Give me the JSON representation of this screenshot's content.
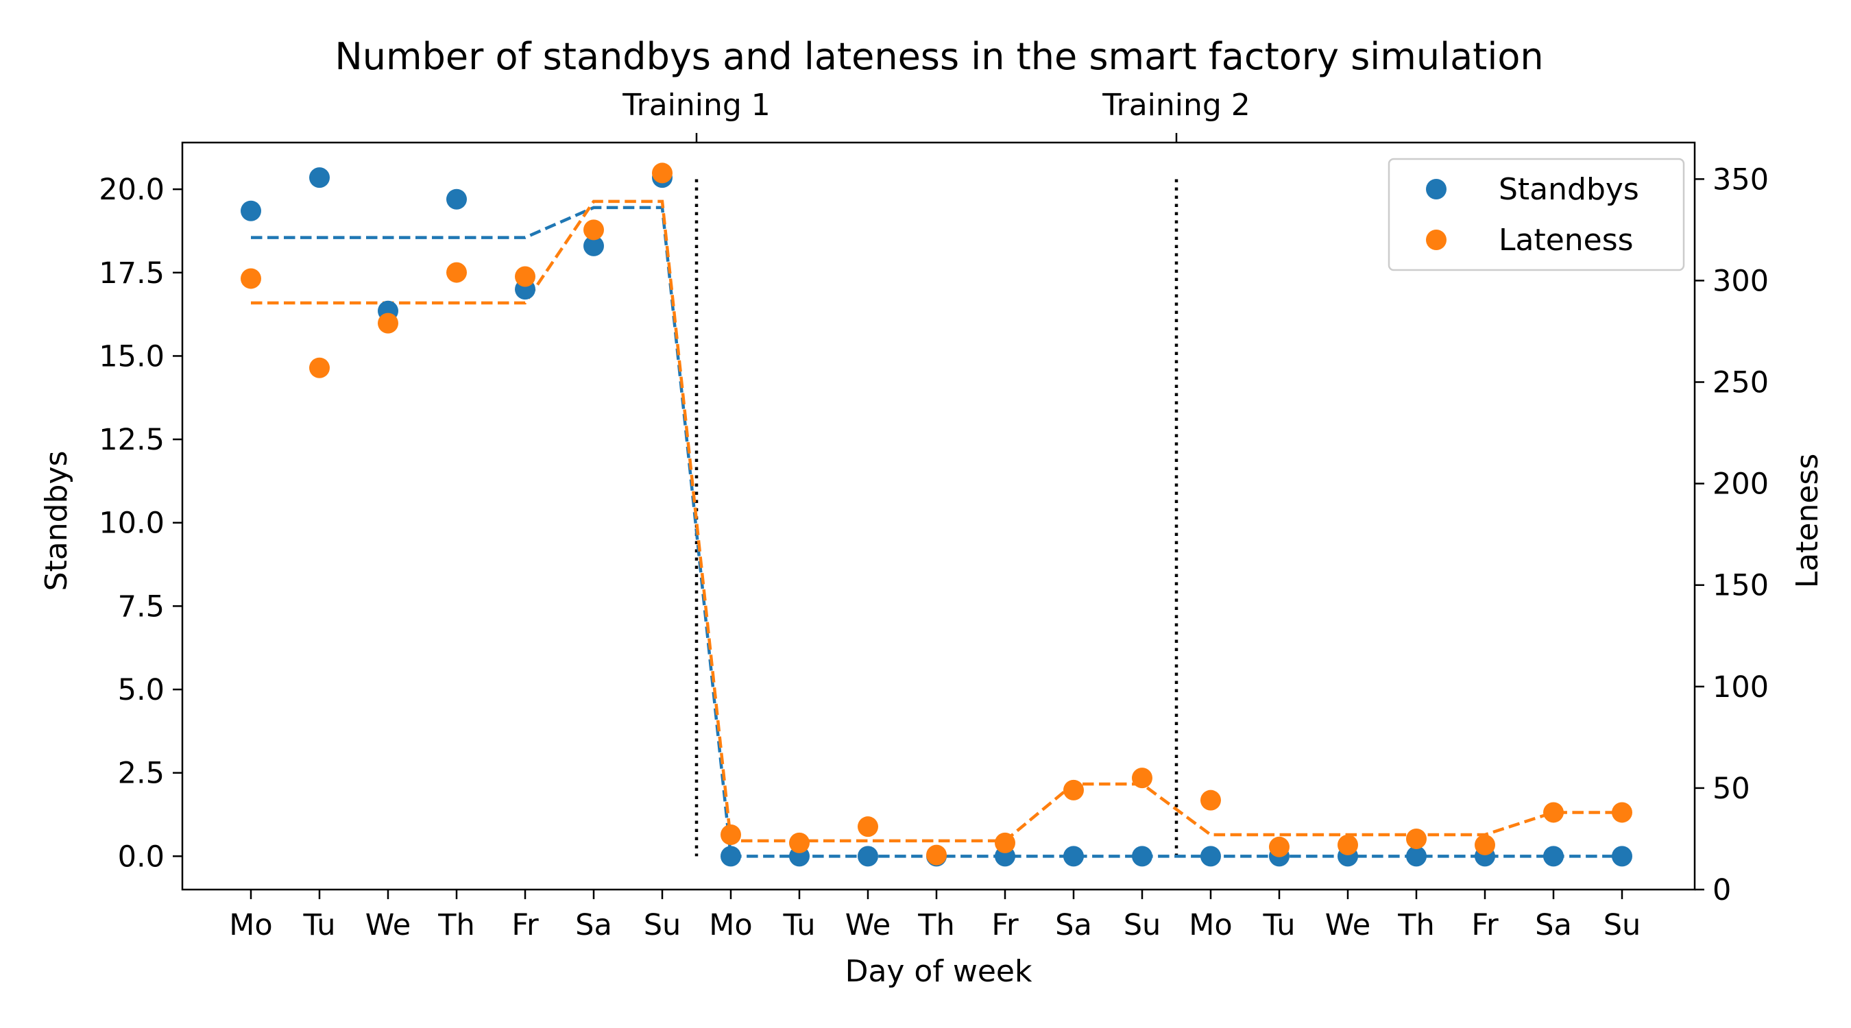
{
  "chart_data": {
    "type": "scatter",
    "title": "Number of standbys and lateness in the smart factory simulation",
    "xlabel": "Day of week",
    "ylabel": "Standbys",
    "ylabel_right": "Lateness",
    "categories": [
      "Mo",
      "Tu",
      "We",
      "Th",
      "Fr",
      "Sa",
      "Su",
      "Mo",
      "Tu",
      "We",
      "Th",
      "Fr",
      "Sa",
      "Su",
      "Mo",
      "Tu",
      "We",
      "Th",
      "Fr",
      "Sa",
      "Su"
    ],
    "ylim": [
      -1.0,
      21.4
    ],
    "ylim_right": [
      0,
      368
    ],
    "yticks": [
      "0.0",
      "2.5",
      "5.0",
      "7.5",
      "10.0",
      "12.5",
      "15.0",
      "17.5",
      "20.0"
    ],
    "yticks_right": [
      "0",
      "50",
      "100",
      "150",
      "200",
      "250",
      "300",
      "350"
    ],
    "top_markers": [
      {
        "label": "Training 1",
        "x": 6.5
      },
      {
        "label": "Training 2",
        "x": 13.5
      }
    ],
    "legend": {
      "position": "top-right",
      "entries": [
        "Standbys",
        "Lateness"
      ]
    },
    "grid": false,
    "series": [
      {
        "name": "Standbys",
        "axis": "left",
        "color": "#1f77b4",
        "values": [
          19.35,
          20.35,
          16.35,
          19.7,
          17.0,
          18.3,
          20.35,
          0.0,
          0.0,
          0.0,
          0.0,
          0.0,
          0.0,
          0.0,
          0.0,
          0.0,
          0.0,
          0.0,
          0.0,
          0.0,
          0.0
        ],
        "trend": [
          18.55,
          18.55,
          18.55,
          18.55,
          18.55,
          19.45,
          19.45,
          0.0,
          0.0,
          0.0,
          0.0,
          0.0,
          0.0,
          0.0,
          0.0,
          0.0,
          0.0,
          0.0,
          0.0,
          0.0,
          0.0
        ]
      },
      {
        "name": "Lateness",
        "axis": "right",
        "color": "#ff7f0e",
        "values": [
          301,
          257,
          279,
          304,
          302,
          325,
          353,
          27,
          23,
          31,
          17,
          23,
          49,
          55,
          44,
          21,
          22,
          25,
          22,
          38,
          38
        ],
        "trend": [
          289,
          289,
          289,
          289,
          289,
          339,
          339,
          24,
          24,
          24,
          24,
          24,
          52,
          52,
          27,
          27,
          27,
          27,
          27,
          38,
          38
        ]
      }
    ]
  }
}
